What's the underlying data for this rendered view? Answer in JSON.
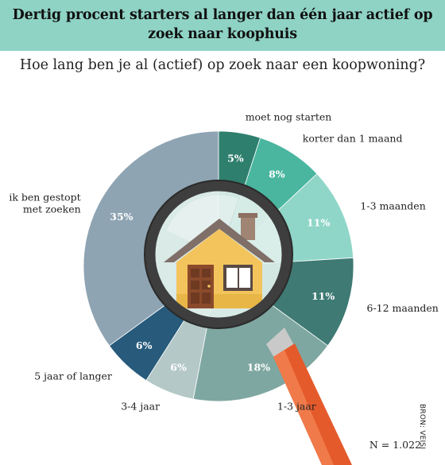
{
  "title": "Dertig procent starters al langer dan één jaar actief op zoek naar koophuis",
  "question": "Hoe lang ben je al (actief) op zoek naar een koopwoning?",
  "source": "BRON: VEISI",
  "sample": "N = 1.022",
  "colors": {
    "title_bg": "#8fd3c5",
    "slices": [
      "#2f7f6e",
      "#4ab69f",
      "#8fd6c8",
      "#3f7a74",
      "#7fa7a1",
      "#b3c8c7",
      "#275a7b",
      "#8ea4b3"
    ],
    "magnifier_rim": "#3e3e3e",
    "handle": "#e55a2b",
    "house_wall": "#f3c45c",
    "roof": "#7f6f68",
    "door": "#8b4a2b"
  },
  "chart_data": {
    "type": "pie",
    "categories": [
      "moet nog starten",
      "korter dan 1 maand",
      "1-3 maanden",
      "6-12 maanden",
      "1-3 jaar",
      "3-4 jaar",
      "5 jaar of langer",
      "ik ben gestopt met zoeken"
    ],
    "values": [
      5,
      8,
      11,
      11,
      18,
      6,
      6,
      35
    ],
    "value_labels": [
      "5%",
      "8%",
      "11%",
      "11%",
      "18%",
      "6%",
      "6%",
      "35%"
    ],
    "label_lines": [
      [
        "moet nog starten"
      ],
      [
        "korter dan 1 maand"
      ],
      [
        "1-3 maanden"
      ],
      [
        "6-12 maanden"
      ],
      [
        "1-3 jaar"
      ],
      [
        "3-4 jaar"
      ],
      [
        "5 jaar of langer"
      ],
      [
        "ik ben gestopt",
        "met zoeken"
      ]
    ],
    "unit": "%"
  },
  "icons": [
    "magnifying-glass-icon",
    "house-icon"
  ]
}
